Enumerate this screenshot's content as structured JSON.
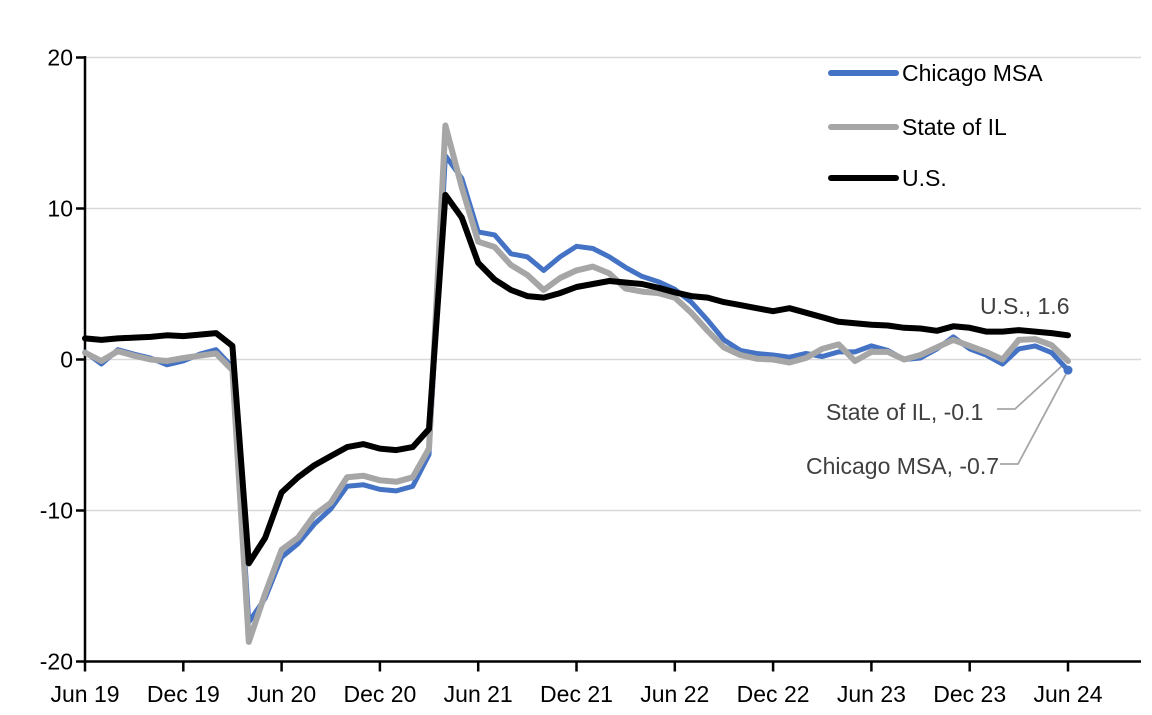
{
  "chart_data": {
    "type": "line",
    "title": "",
    "xlabel": "",
    "ylabel": "",
    "x_frequency": "monthly",
    "x_start": "Jun 2019",
    "x_end": "Jun 2024",
    "n_points": 61,
    "x_tick_labels": [
      "Jun 19",
      "Dec 19",
      "Jun 20",
      "Dec 20",
      "Jun 21",
      "Dec 21",
      "Jun 22",
      "Dec 22",
      "Jun 23",
      "Dec 23",
      "Jun 24"
    ],
    "y_ticks": [
      20,
      10,
      0,
      -10,
      -20
    ],
    "y_tick_labels": [
      "20",
      "10",
      "0",
      "-10",
      "-20"
    ],
    "ylim": [
      -20,
      20
    ],
    "grid": true,
    "legend_position": "top-right-inside",
    "series": [
      {
        "name": "Chicago MSA",
        "color": "#4472C4",
        "end_label": "Chicago MSA, -0.7",
        "end_value": -0.7,
        "values": [
          0.5,
          -0.3,
          0.65,
          0.35,
          0.1,
          -0.35,
          -0.1,
          0.35,
          0.65,
          -0.5,
          -17.4,
          -15.8,
          -13.1,
          -12.2,
          -10.9,
          -9.9,
          -8.4,
          -8.3,
          -8.6,
          -8.7,
          -8.4,
          -6.3,
          13.5,
          12.0,
          8.45,
          8.25,
          7.0,
          6.8,
          5.9,
          6.8,
          7.5,
          7.35,
          6.8,
          6.1,
          5.5,
          5.15,
          4.65,
          3.8,
          2.6,
          1.3,
          0.6,
          0.4,
          0.3,
          0.15,
          0.4,
          0.2,
          0.5,
          0.5,
          0.9,
          0.6,
          0.0,
          0.1,
          0.7,
          1.5,
          0.7,
          0.3,
          -0.3,
          0.7,
          0.9,
          0.45,
          -0.7
        ]
      },
      {
        "name": "State of IL",
        "color": "#A6A6A6",
        "end_label": "State of IL, -0.1",
        "end_value": -0.1,
        "values": [
          0.45,
          -0.1,
          0.55,
          0.25,
          0.0,
          -0.1,
          0.1,
          0.25,
          0.4,
          -0.7,
          -18.7,
          -15.5,
          -12.6,
          -11.8,
          -10.3,
          -9.5,
          -7.8,
          -7.7,
          -8.0,
          -8.1,
          -7.8,
          -5.9,
          15.5,
          11.4,
          7.8,
          7.45,
          6.25,
          5.6,
          4.6,
          5.4,
          5.9,
          6.15,
          5.7,
          4.7,
          4.5,
          4.4,
          4.1,
          3.1,
          1.9,
          0.8,
          0.3,
          0.05,
          0.0,
          -0.2,
          0.1,
          0.7,
          1.0,
          -0.1,
          0.5,
          0.5,
          0.0,
          0.3,
          0.8,
          1.3,
          0.9,
          0.5,
          0.0,
          1.3,
          1.35,
          0.95,
          -0.1
        ]
      },
      {
        "name": "U.S.",
        "color": "#000000",
        "end_label": "U.S., 1.6",
        "end_value": 1.6,
        "values": [
          1.4,
          1.3,
          1.4,
          1.45,
          1.5,
          1.6,
          1.55,
          1.65,
          1.75,
          0.9,
          -13.5,
          -11.8,
          -8.8,
          -7.8,
          -7.0,
          -6.4,
          -5.8,
          -5.6,
          -5.9,
          -6.0,
          -5.8,
          -4.6,
          10.9,
          9.4,
          6.4,
          5.3,
          4.6,
          4.2,
          4.1,
          4.4,
          4.8,
          5.0,
          5.2,
          5.1,
          5.0,
          4.75,
          4.45,
          4.2,
          4.1,
          3.8,
          3.6,
          3.4,
          3.2,
          3.4,
          3.1,
          2.8,
          2.5,
          2.4,
          2.3,
          2.25,
          2.1,
          2.05,
          1.9,
          2.2,
          2.1,
          1.85,
          1.85,
          1.95,
          1.85,
          1.75,
          1.6
        ]
      }
    ]
  },
  "legend": {
    "items": [
      {
        "label": "Chicago MSA"
      },
      {
        "label": "State of IL"
      },
      {
        "label": "U.S."
      }
    ]
  },
  "annotations": {
    "us": "U.S., 1.6",
    "il": "State of IL, -0.1",
    "chicago": "Chicago MSA, -0.7"
  },
  "colors": {
    "chicago": "#4472C4",
    "il": "#A6A6A6",
    "us": "#000000",
    "grid": "#D9D9D9",
    "axis": "#000000",
    "annotation_text": "#404040",
    "leader": "#A6A6A6"
  }
}
